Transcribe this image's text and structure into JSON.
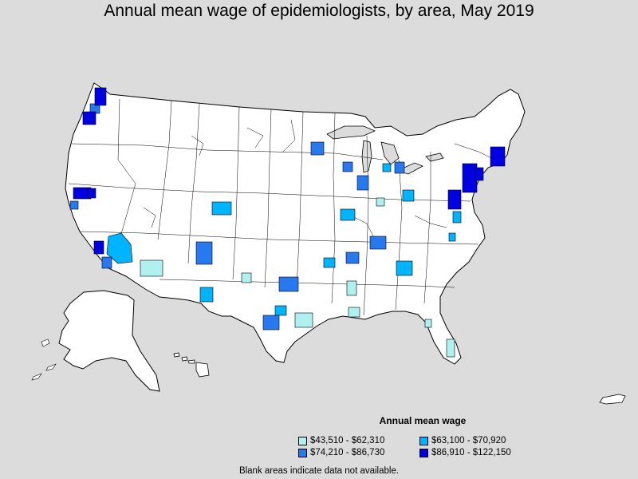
{
  "title": "Annual mean wage of epidemiologists, by area, May 2019",
  "legend": {
    "title": "Annual mean wage",
    "items": [
      {
        "label": "$43,510 - $62,310",
        "color": "#b0f0f0"
      },
      {
        "label": "$63,100 - $70,920",
        "color": "#00b4ff"
      },
      {
        "label": "$74,210 - $86,730",
        "color": "#2878f0"
      },
      {
        "label": "$86,910 - $122,150",
        "color": "#0000e0"
      }
    ]
  },
  "note": "Blank areas indicate data not available.",
  "colors": {
    "background": "#dcdcdc",
    "land": "#ffffff",
    "border": "#000000"
  }
}
